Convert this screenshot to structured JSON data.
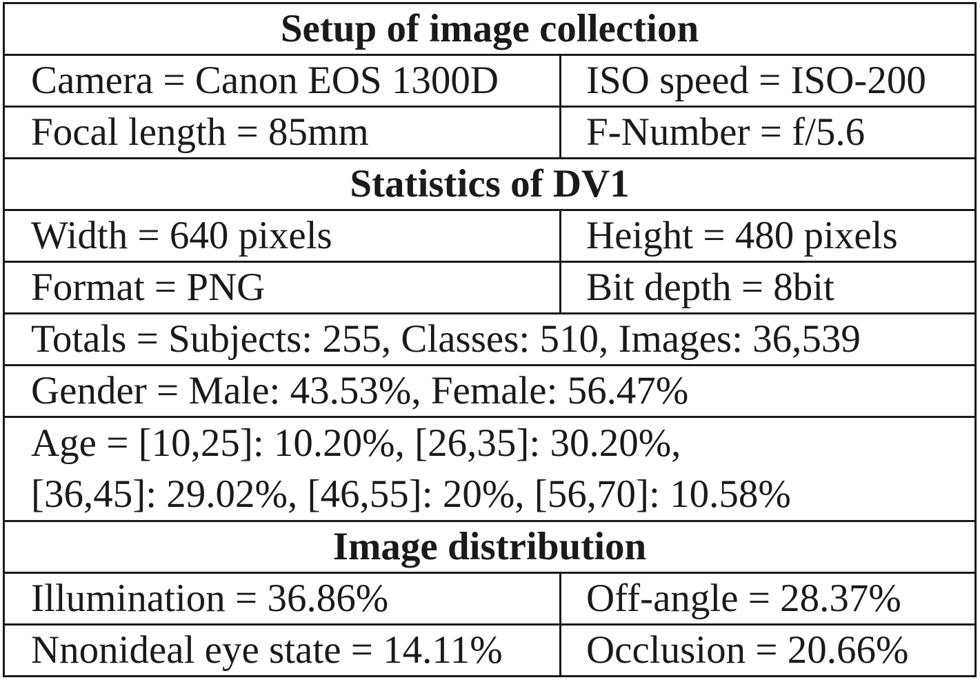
{
  "setup": {
    "heading": "Setup of image collection",
    "camera": "Camera = Canon EOS 1300D",
    "iso": "ISO speed = ISO-200",
    "focal_length": "Focal length = 85mm",
    "f_number": "F-Number = f/5.6"
  },
  "statistics": {
    "heading": "Statistics of DV1",
    "width": "Width = 640 pixels",
    "height": "Height = 480 pixels",
    "format": "Format = PNG",
    "bit_depth": "Bit depth = 8bit",
    "totals": "Totals = Subjects: 255, Classes: 510, Images: 36,539",
    "gender": "Gender = Male: 43.53%, Female: 56.47%",
    "age_line1": "Age = [10,25]: 10.20%, [26,35]: 30.20%,",
    "age_line2": "[36,45]: 29.02%, [46,55]: 20%, [56,70]: 10.58%"
  },
  "distribution": {
    "heading": "Image distribution",
    "illumination": "Illumination = 36.86%",
    "off_angle": "Off-angle = 28.37%",
    "nonideal_eye_state": "Nnonideal eye state = 14.11%",
    "occlusion": "Occlusion = 20.66%"
  }
}
